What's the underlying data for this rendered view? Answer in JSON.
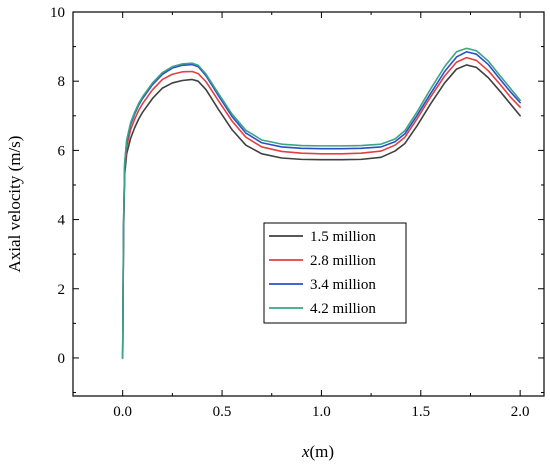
{
  "chart_data": {
    "type": "line",
    "title": "",
    "xlabel": "x",
    "xlabel_unit": "(m)",
    "ylabel": "Axial velocity (m/s)",
    "xlim": [
      -0.25,
      2.12
    ],
    "ylim": [
      -1.1,
      10
    ],
    "x_ticks": [
      0.0,
      0.5,
      1.0,
      1.5,
      2.0
    ],
    "x_tick_labels": [
      "0.0",
      "0.5",
      "1.0",
      "1.5",
      "2.0"
    ],
    "y_ticks": [
      0,
      2,
      4,
      6,
      8,
      10
    ],
    "y_tick_labels": [
      "0",
      "2",
      "4",
      "6",
      "8",
      "10"
    ],
    "grid": false,
    "legend_position": "center-right",
    "series": [
      {
        "name": "1.5 million",
        "color": "#404040",
        "x": [
          0.0,
          0.004,
          0.01,
          0.02,
          0.04,
          0.06,
          0.08,
          0.1,
          0.15,
          0.2,
          0.25,
          0.3,
          0.35,
          0.38,
          0.42,
          0.48,
          0.55,
          0.62,
          0.7,
          0.8,
          0.9,
          1.0,
          1.1,
          1.2,
          1.3,
          1.37,
          1.42,
          1.48,
          1.55,
          1.62,
          1.68,
          1.73,
          1.78,
          1.84,
          1.9,
          1.95,
          2.0
        ],
        "y": [
          0.0,
          3.5,
          5.3,
          5.9,
          6.35,
          6.65,
          6.9,
          7.1,
          7.5,
          7.8,
          7.95,
          8.02,
          8.05,
          8.0,
          7.75,
          7.2,
          6.6,
          6.15,
          5.9,
          5.78,
          5.74,
          5.73,
          5.73,
          5.74,
          5.8,
          5.98,
          6.2,
          6.7,
          7.35,
          7.95,
          8.35,
          8.47,
          8.4,
          8.1,
          7.7,
          7.35,
          7.0
        ]
      },
      {
        "name": "2.8 million",
        "color": "#e04040",
        "x": [
          0.0,
          0.004,
          0.01,
          0.02,
          0.04,
          0.06,
          0.08,
          0.1,
          0.15,
          0.2,
          0.25,
          0.3,
          0.35,
          0.38,
          0.42,
          0.48,
          0.55,
          0.62,
          0.7,
          0.8,
          0.9,
          1.0,
          1.1,
          1.2,
          1.3,
          1.37,
          1.42,
          1.48,
          1.55,
          1.62,
          1.68,
          1.73,
          1.78,
          1.84,
          1.9,
          1.95,
          2.0
        ],
        "y": [
          0.0,
          3.6,
          5.5,
          6.1,
          6.6,
          6.9,
          7.15,
          7.35,
          7.75,
          8.05,
          8.2,
          8.27,
          8.28,
          8.22,
          7.98,
          7.45,
          6.85,
          6.38,
          6.1,
          5.97,
          5.92,
          5.9,
          5.9,
          5.92,
          5.98,
          6.15,
          6.38,
          6.9,
          7.55,
          8.15,
          8.55,
          8.68,
          8.6,
          8.3,
          7.9,
          7.55,
          7.25
        ]
      },
      {
        "name": "3.4 million",
        "color": "#2d4ec8",
        "x": [
          0.0,
          0.004,
          0.01,
          0.02,
          0.04,
          0.06,
          0.08,
          0.1,
          0.15,
          0.2,
          0.25,
          0.3,
          0.35,
          0.38,
          0.42,
          0.48,
          0.55,
          0.62,
          0.7,
          0.8,
          0.9,
          1.0,
          1.1,
          1.2,
          1.3,
          1.37,
          1.42,
          1.48,
          1.55,
          1.62,
          1.68,
          1.73,
          1.78,
          1.84,
          1.9,
          1.95,
          2.0
        ],
        "y": [
          0.0,
          3.7,
          5.6,
          6.25,
          6.75,
          7.05,
          7.3,
          7.5,
          7.9,
          8.2,
          8.38,
          8.46,
          8.48,
          8.42,
          8.15,
          7.6,
          6.98,
          6.5,
          6.22,
          6.1,
          6.06,
          6.05,
          6.05,
          6.06,
          6.1,
          6.25,
          6.48,
          7.0,
          7.65,
          8.28,
          8.7,
          8.85,
          8.78,
          8.48,
          8.05,
          7.7,
          7.38
        ]
      },
      {
        "name": "4.2 million",
        "color": "#3aa586",
        "x": [
          0.0,
          0.004,
          0.01,
          0.02,
          0.04,
          0.06,
          0.08,
          0.1,
          0.15,
          0.2,
          0.25,
          0.3,
          0.35,
          0.38,
          0.42,
          0.48,
          0.55,
          0.62,
          0.7,
          0.8,
          0.9,
          1.0,
          1.1,
          1.2,
          1.3,
          1.37,
          1.42,
          1.48,
          1.55,
          1.62,
          1.68,
          1.73,
          1.78,
          1.84,
          1.9,
          1.95,
          2.0
        ],
        "y": [
          0.0,
          3.75,
          5.65,
          6.3,
          6.8,
          7.1,
          7.35,
          7.55,
          7.95,
          8.25,
          8.42,
          8.5,
          8.52,
          8.46,
          8.2,
          7.66,
          7.05,
          6.58,
          6.3,
          6.18,
          6.14,
          6.13,
          6.13,
          6.14,
          6.18,
          6.33,
          6.57,
          7.1,
          7.78,
          8.42,
          8.85,
          8.95,
          8.88,
          8.58,
          8.15,
          7.8,
          7.45
        ]
      }
    ]
  }
}
